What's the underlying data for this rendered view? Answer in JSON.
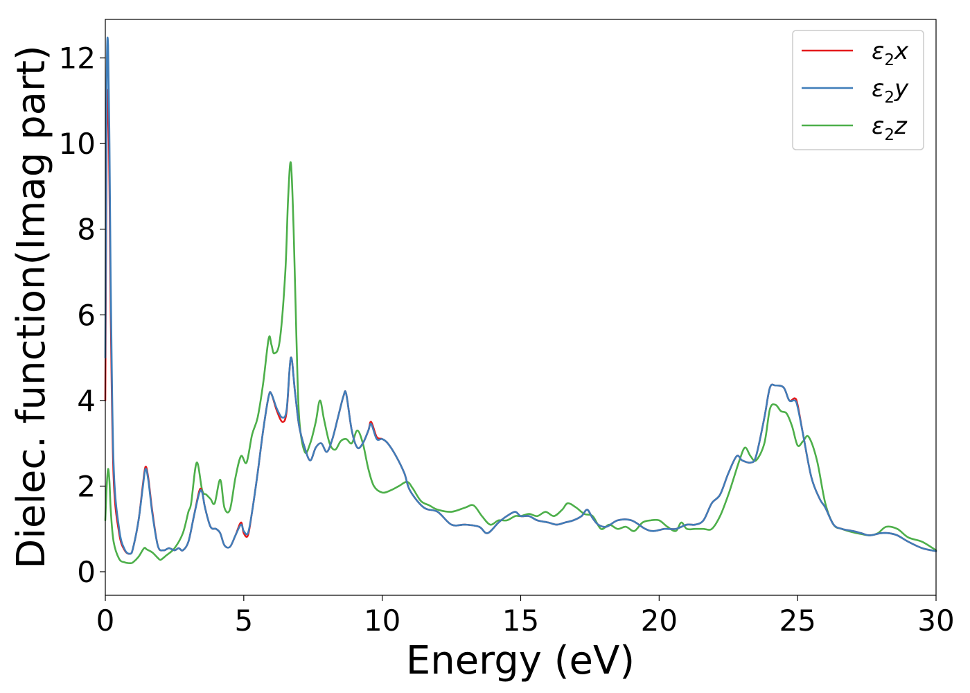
{
  "chart_data": {
    "type": "line",
    "title": "",
    "xlabel": "Energy (eV)",
    "ylabel": "Dielec. function(Imag part)",
    "xlim": [
      0,
      30
    ],
    "ylim": [
      -0.55,
      12.9
    ],
    "xticks": [
      0,
      5,
      10,
      15,
      20,
      25,
      30
    ],
    "yticks": [
      0,
      2,
      4,
      6,
      8,
      10,
      12
    ],
    "grid": false,
    "legend_position": "top-right",
    "series": [
      {
        "name": "ε₂x",
        "legend_base": "ε",
        "legend_sub": "2",
        "legend_suffix": "x",
        "color": "#e41a1c",
        "x": [
          0,
          0.05,
          0.1,
          0.15,
          0.2,
          0.3,
          0.5,
          0.7,
          0.9,
          1.0,
          1.2,
          1.35,
          1.45,
          1.55,
          1.7,
          1.9,
          2.1,
          2.3,
          2.5,
          2.65,
          2.8,
          3.0,
          3.2,
          3.4,
          3.5,
          3.6,
          3.8,
          4.0,
          4.15,
          4.3,
          4.5,
          4.7,
          4.9,
          5.0,
          5.15,
          5.3,
          5.5,
          5.7,
          5.9,
          6.0,
          6.2,
          6.4,
          6.55,
          6.7,
          6.85,
          7.0,
          7.2,
          7.4,
          7.6,
          7.8,
          8.0,
          8.2,
          8.4,
          8.6,
          8.7,
          8.9,
          9.1,
          9.3,
          9.5,
          9.6,
          9.8,
          10.0,
          10.2,
          10.5,
          10.8,
          11.0,
          11.5,
          12.0,
          12.5,
          13.0,
          13.5,
          13.8,
          14.2,
          14.5,
          14.8,
          15.0,
          15.3,
          15.6,
          16.0,
          16.3,
          16.6,
          16.9,
          17.2,
          17.4,
          17.6,
          17.8,
          18.1,
          18.5,
          19.0,
          19.5,
          19.8,
          20.2,
          20.6,
          21.0,
          21.3,
          21.6,
          21.9,
          22.2,
          22.5,
          22.8,
          23.0,
          23.3,
          23.5,
          23.8,
          24.0,
          24.2,
          24.5,
          24.7,
          24.9,
          25.0,
          25.2,
          25.5,
          25.8,
          26.0,
          26.3,
          26.6,
          27.0,
          27.3,
          27.6,
          28.0,
          28.3,
          28.6,
          29.0,
          29.5,
          30.0
        ],
        "y": [
          4.0,
          10.0,
          11.2,
          9.0,
          5.8,
          2.2,
          0.9,
          0.5,
          0.42,
          0.55,
          1.2,
          2.0,
          2.45,
          2.2,
          1.4,
          0.6,
          0.5,
          0.55,
          0.5,
          0.55,
          0.5,
          0.7,
          1.3,
          1.9,
          1.85,
          1.5,
          1.05,
          1.0,
          0.9,
          0.62,
          0.58,
          0.85,
          1.15,
          0.9,
          0.85,
          1.4,
          2.3,
          3.3,
          4.1,
          4.15,
          3.75,
          3.5,
          3.75,
          5.0,
          4.2,
          3.4,
          2.9,
          2.6,
          2.9,
          3.0,
          2.8,
          3.1,
          3.6,
          4.1,
          4.15,
          3.3,
          2.9,
          3.0,
          3.3,
          3.5,
          3.15,
          3.1,
          3.0,
          2.7,
          2.3,
          1.9,
          1.5,
          1.4,
          1.1,
          1.1,
          1.05,
          0.9,
          1.15,
          1.3,
          1.4,
          1.3,
          1.3,
          1.2,
          1.15,
          1.1,
          1.15,
          1.2,
          1.3,
          1.45,
          1.25,
          1.1,
          1.05,
          1.2,
          1.2,
          1.0,
          0.95,
          1.0,
          1.0,
          1.1,
          1.1,
          1.2,
          1.6,
          1.8,
          2.3,
          2.7,
          2.6,
          2.55,
          2.7,
          3.6,
          4.3,
          4.35,
          4.3,
          4.0,
          4.05,
          3.9,
          3.2,
          2.2,
          1.7,
          1.5,
          1.1,
          1.0,
          0.95,
          0.9,
          0.85,
          0.9,
          0.9,
          0.85,
          0.7,
          0.55,
          0.48
        ]
      },
      {
        "name": "ε₂y",
        "legend_base": "ε",
        "legend_sub": "2",
        "legend_suffix": "y",
        "color": "#3f7db9",
        "x": [
          0,
          0.05,
          0.1,
          0.15,
          0.2,
          0.3,
          0.5,
          0.7,
          0.9,
          1.0,
          1.2,
          1.35,
          1.45,
          1.55,
          1.7,
          1.9,
          2.1,
          2.3,
          2.5,
          2.65,
          2.8,
          3.0,
          3.2,
          3.4,
          3.5,
          3.6,
          3.8,
          4.0,
          4.15,
          4.3,
          4.5,
          4.7,
          4.9,
          5.0,
          5.15,
          5.3,
          5.5,
          5.7,
          5.9,
          6.0,
          6.2,
          6.4,
          6.55,
          6.7,
          6.85,
          7.0,
          7.2,
          7.4,
          7.6,
          7.8,
          8.0,
          8.2,
          8.4,
          8.6,
          8.7,
          8.9,
          9.1,
          9.3,
          9.5,
          9.6,
          9.8,
          10.0,
          10.2,
          10.5,
          10.8,
          11.0,
          11.5,
          12.0,
          12.5,
          13.0,
          13.5,
          13.8,
          14.2,
          14.5,
          14.8,
          15.0,
          15.3,
          15.6,
          16.0,
          16.3,
          16.6,
          16.9,
          17.2,
          17.4,
          17.6,
          17.8,
          18.1,
          18.5,
          19.0,
          19.5,
          19.8,
          20.2,
          20.6,
          21.0,
          21.3,
          21.6,
          21.9,
          22.2,
          22.5,
          22.8,
          23.0,
          23.3,
          23.5,
          23.8,
          24.0,
          24.2,
          24.5,
          24.7,
          24.9,
          25.0,
          25.2,
          25.5,
          25.8,
          26.0,
          26.3,
          26.6,
          27.0,
          27.3,
          27.6,
          28.0,
          28.3,
          28.6,
          29.0,
          29.5,
          30.0
        ],
        "y": [
          5.0,
          11.5,
          12.3,
          10.0,
          6.5,
          2.5,
          1.0,
          0.52,
          0.42,
          0.55,
          1.2,
          1.95,
          2.4,
          2.15,
          1.35,
          0.6,
          0.5,
          0.55,
          0.5,
          0.55,
          0.5,
          0.7,
          1.3,
          1.85,
          1.85,
          1.5,
          1.05,
          1.0,
          0.9,
          0.62,
          0.58,
          0.85,
          1.1,
          0.95,
          0.9,
          1.4,
          2.3,
          3.3,
          4.1,
          4.15,
          3.8,
          3.6,
          3.8,
          5.0,
          4.2,
          3.4,
          2.9,
          2.6,
          2.9,
          3.0,
          2.8,
          3.1,
          3.6,
          4.1,
          4.15,
          3.3,
          2.9,
          3.0,
          3.3,
          3.45,
          3.1,
          3.1,
          3.0,
          2.7,
          2.3,
          1.9,
          1.5,
          1.4,
          1.1,
          1.1,
          1.05,
          0.9,
          1.15,
          1.3,
          1.4,
          1.3,
          1.3,
          1.2,
          1.15,
          1.1,
          1.15,
          1.2,
          1.3,
          1.45,
          1.25,
          1.1,
          1.05,
          1.2,
          1.2,
          1.0,
          0.95,
          1.0,
          1.0,
          1.1,
          1.1,
          1.2,
          1.6,
          1.8,
          2.3,
          2.7,
          2.6,
          2.55,
          2.7,
          3.6,
          4.3,
          4.35,
          4.3,
          4.0,
          4.0,
          3.85,
          3.2,
          2.2,
          1.7,
          1.5,
          1.1,
          1.0,
          0.95,
          0.9,
          0.85,
          0.9,
          0.9,
          0.85,
          0.7,
          0.55,
          0.48
        ]
      },
      {
        "name": "ε₂z",
        "legend_base": "ε",
        "legend_sub": "2",
        "legend_suffix": "z",
        "color": "#4daf4a",
        "x": [
          0,
          0.05,
          0.1,
          0.15,
          0.2,
          0.3,
          0.5,
          0.7,
          0.9,
          1.0,
          1.2,
          1.4,
          1.5,
          1.7,
          1.9,
          2.0,
          2.2,
          2.5,
          2.8,
          3.0,
          3.1,
          3.3,
          3.5,
          3.65,
          3.8,
          3.95,
          4.15,
          4.3,
          4.5,
          4.7,
          4.9,
          5.1,
          5.3,
          5.5,
          5.7,
          5.9,
          6.0,
          6.1,
          6.3,
          6.5,
          6.6,
          6.7,
          6.8,
          6.9,
          7.0,
          7.2,
          7.4,
          7.6,
          7.75,
          7.9,
          8.1,
          8.3,
          8.5,
          8.7,
          8.9,
          9.1,
          9.3,
          9.5,
          9.7,
          10.0,
          10.3,
          10.6,
          10.9,
          11.1,
          11.4,
          11.7,
          12.0,
          12.5,
          13.0,
          13.3,
          13.6,
          13.9,
          14.2,
          14.5,
          14.8,
          15.0,
          15.3,
          15.6,
          15.9,
          16.2,
          16.5,
          16.7,
          17.0,
          17.3,
          17.6,
          17.9,
          18.2,
          18.5,
          18.8,
          19.1,
          19.4,
          19.7,
          20.0,
          20.3,
          20.6,
          20.8,
          21.0,
          21.3,
          21.6,
          21.9,
          22.2,
          22.5,
          22.7,
          22.9,
          23.1,
          23.3,
          23.5,
          23.8,
          24.0,
          24.2,
          24.4,
          24.6,
          24.8,
          25.0,
          25.2,
          25.4,
          25.7,
          26.0,
          26.3,
          26.6,
          27.0,
          27.3,
          27.6,
          27.9,
          28.2,
          28.6,
          29.0,
          29.5,
          30.0
        ],
        "y": [
          1.2,
          2.0,
          2.4,
          2.1,
          1.4,
          0.7,
          0.3,
          0.22,
          0.2,
          0.22,
          0.35,
          0.55,
          0.52,
          0.45,
          0.32,
          0.28,
          0.38,
          0.55,
          0.9,
          1.4,
          1.6,
          2.55,
          1.9,
          1.8,
          1.7,
          1.6,
          2.15,
          1.5,
          1.45,
          2.2,
          2.7,
          2.55,
          3.2,
          3.6,
          4.4,
          5.45,
          5.3,
          5.1,
          5.4,
          7.0,
          8.7,
          9.55,
          8.0,
          5.5,
          3.6,
          2.8,
          3.0,
          3.5,
          4.0,
          3.55,
          3.0,
          2.85,
          3.05,
          3.1,
          3.0,
          3.3,
          3.0,
          2.4,
          2.0,
          1.85,
          1.9,
          2.0,
          2.1,
          1.95,
          1.65,
          1.55,
          1.45,
          1.4,
          1.5,
          1.55,
          1.3,
          1.1,
          1.2,
          1.2,
          1.3,
          1.3,
          1.35,
          1.3,
          1.4,
          1.3,
          1.45,
          1.6,
          1.5,
          1.35,
          1.3,
          1.0,
          1.1,
          1.0,
          1.05,
          0.95,
          1.15,
          1.2,
          1.2,
          1.05,
          0.95,
          1.15,
          1.0,
          1.0,
          1.0,
          1.0,
          1.3,
          1.8,
          2.2,
          2.6,
          2.9,
          2.7,
          2.6,
          3.0,
          3.8,
          3.9,
          3.75,
          3.7,
          3.4,
          2.95,
          3.05,
          3.15,
          2.6,
          1.6,
          1.1,
          1.0,
          0.92,
          0.88,
          0.85,
          0.9,
          1.05,
          1.0,
          0.8,
          0.7,
          0.5
        ]
      }
    ]
  }
}
